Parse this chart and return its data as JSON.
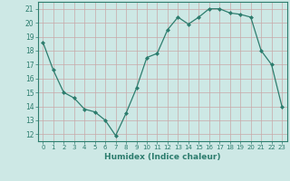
{
  "x": [
    0,
    1,
    2,
    3,
    4,
    5,
    6,
    7,
    8,
    9,
    10,
    11,
    12,
    13,
    14,
    15,
    16,
    17,
    18,
    19,
    20,
    21,
    22,
    23
  ],
  "y": [
    18.6,
    16.6,
    15.0,
    14.6,
    13.8,
    13.6,
    13.0,
    11.9,
    13.5,
    15.3,
    17.5,
    17.8,
    19.5,
    20.4,
    19.9,
    20.4,
    21.0,
    21.0,
    20.7,
    20.6,
    20.4,
    18.0,
    17.0,
    14.0
  ],
  "line_color": "#2d7d6e",
  "marker": "D",
  "marker_size": 2,
  "bg_color": "#cde8e5",
  "grid_color": "#b8d8d5",
  "xlabel": "Humidex (Indice chaleur)",
  "ylim": [
    11.5,
    21.5
  ],
  "xlim": [
    -0.5,
    23.5
  ],
  "yticks": [
    12,
    13,
    14,
    15,
    16,
    17,
    18,
    19,
    20,
    21
  ],
  "xticks": [
    0,
    1,
    2,
    3,
    4,
    5,
    6,
    7,
    8,
    9,
    10,
    11,
    12,
    13,
    14,
    15,
    16,
    17,
    18,
    19,
    20,
    21,
    22,
    23
  ],
  "tick_color": "#2d7d6e",
  "label_color": "#2d7d6e",
  "spine_color": "#2d7d6e"
}
